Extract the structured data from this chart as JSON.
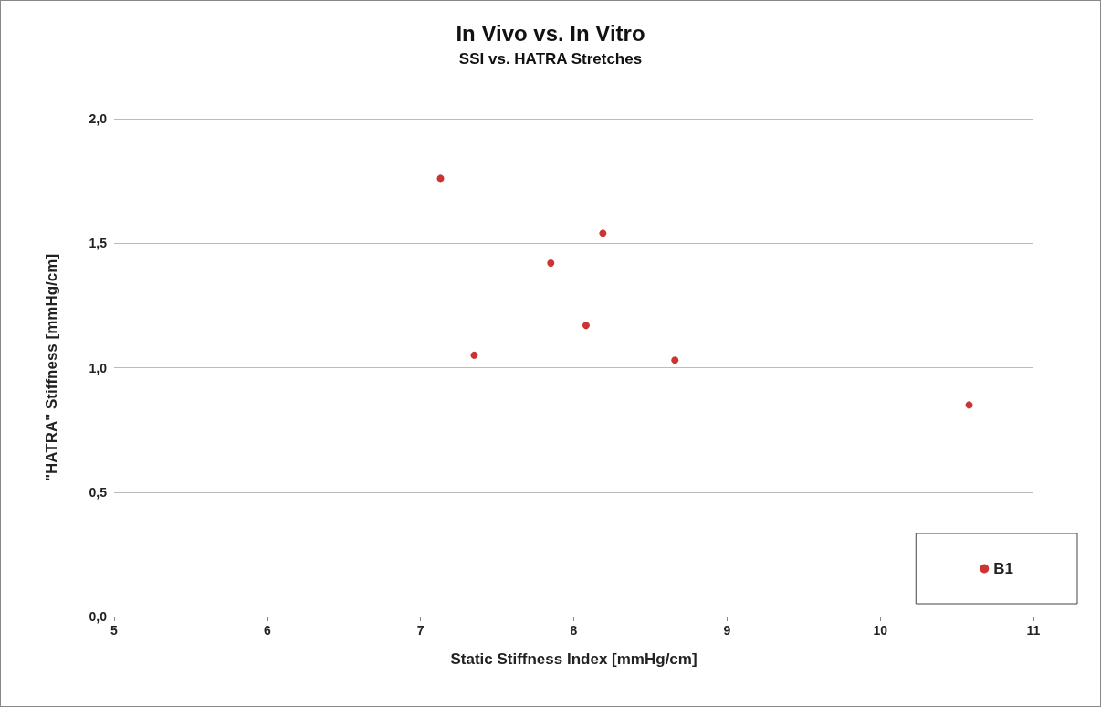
{
  "chart_data": {
    "type": "scatter",
    "title": "In Vivo vs. In Vitro",
    "subtitle": "SSI vs. HATRA Stretches",
    "xlabel": "Static Stiffness Index [mmHg/cm]",
    "ylabel": "\"HATRA\" Stiffness [mmHg/cm]",
    "series": [
      {
        "name": "B1",
        "color": "#c00000",
        "x": [
          7.13,
          8.19,
          7.85,
          8.08,
          7.35,
          8.66,
          10.58
        ],
        "values": [
          1.76,
          1.54,
          1.42,
          1.17,
          1.05,
          1.03,
          0.85
        ]
      }
    ],
    "xlim": [
      5,
      11
    ],
    "xticks": [
      5,
      6,
      7,
      8,
      9,
      10,
      11
    ],
    "ylim": [
      0,
      2
    ],
    "yticks": [
      {
        "value": 0,
        "label": "0,0"
      },
      {
        "value": 0.5,
        "label": "0,5"
      },
      {
        "value": 1,
        "label": "1,0"
      },
      {
        "value": 1.5,
        "label": "1,5"
      },
      {
        "value": 2,
        "label": "2,0"
      }
    ],
    "grid": "y",
    "legend": "bottom right",
    "marker": "circle"
  }
}
